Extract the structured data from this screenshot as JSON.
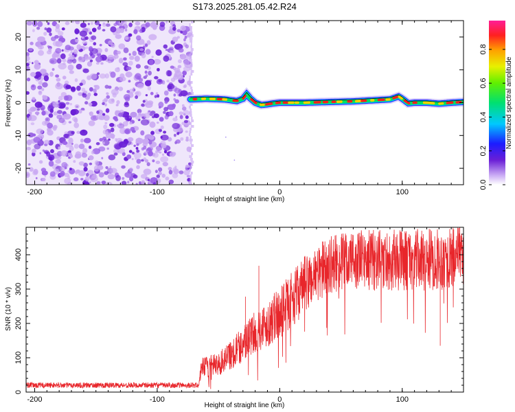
{
  "title": "S173.2025.281.05.42.R24",
  "colors": {
    "snr_line": "#e8262b",
    "frame": "#000000",
    "noise_dark": "#6a1fd6",
    "noise_light": "#c9a8f2",
    "ridge_core": "#ff1e1e",
    "ridge_mid": "#00e060",
    "ridge_edge": "#2020ff"
  },
  "chart_data": [
    {
      "type": "heatmap",
      "title": "S173.2025.281.05.42.R24",
      "xlabel": "Height of straight line (km)",
      "ylabel": "Frequency (Hz)",
      "xlim": [
        -207,
        150
      ],
      "ylim": [
        -25,
        25
      ],
      "x_ticks": [
        -200,
        -100,
        0,
        100
      ],
      "y_ticks": [
        -20,
        -10,
        0,
        10,
        20
      ],
      "noise_region_x": [
        -207,
        -73
      ],
      "signal_ridge": {
        "x": [
          -73,
          -60,
          -45,
          -35,
          -30,
          -27,
          -24,
          -20,
          -15,
          -10,
          -5,
          0,
          10,
          20,
          40,
          60,
          80,
          90,
          97,
          100,
          105,
          110,
          120,
          130,
          140,
          150
        ],
        "freq": [
          1.0,
          1.2,
          1.0,
          0.5,
          1.2,
          2.6,
          1.3,
          0.0,
          -0.7,
          -0.5,
          -0.2,
          0.0,
          0.0,
          0.0,
          0.2,
          0.4,
          0.8,
          1.0,
          1.9,
          1.2,
          -0.2,
          0.0,
          0.0,
          -0.3,
          0.0,
          0.2
        ]
      },
      "colorbar": {
        "label": "Normalized spectral amplitude",
        "range": [
          0.0,
          0.97
        ],
        "ticks": [
          "0.0",
          "0.2",
          "0.4",
          "0.6",
          "0.8"
        ]
      }
    },
    {
      "type": "line",
      "xlabel": "Height of straight line (km)",
      "ylabel": "SNR (10 * v/v)",
      "xlim": [
        -207,
        150
      ],
      "ylim": [
        0,
        480
      ],
      "x_ticks": [
        -200,
        -100,
        0,
        100
      ],
      "y_ticks": [
        0,
        100,
        200,
        300,
        400
      ],
      "series": [
        {
          "name": "SNR",
          "envelope": {
            "x": [
              -207,
              -150,
              -100,
              -66,
              -64,
              -50,
              -40,
              -30,
              -20,
              -10,
              0,
              10,
              20,
              30,
              40,
              60,
              80,
              100,
              120,
              150
            ],
            "mean": [
              20,
              20,
              20,
              20,
              70,
              80,
              110,
              140,
              175,
              200,
              230,
              270,
              310,
              345,
              370,
              385,
              385,
              385,
              385,
              390
            ],
            "spread": [
              8,
              8,
              8,
              8,
              30,
              35,
              45,
              55,
              60,
              70,
              75,
              80,
              85,
              85,
              85,
              85,
              90,
              90,
              90,
              90
            ]
          },
          "spikes": [
            {
              "x": -17,
              "y": 368
            },
            {
              "x": -28,
              "y": 278
            },
            {
              "x": 131,
              "y": 135
            },
            {
              "x": 147,
              "y": 480
            }
          ]
        }
      ]
    }
  ]
}
